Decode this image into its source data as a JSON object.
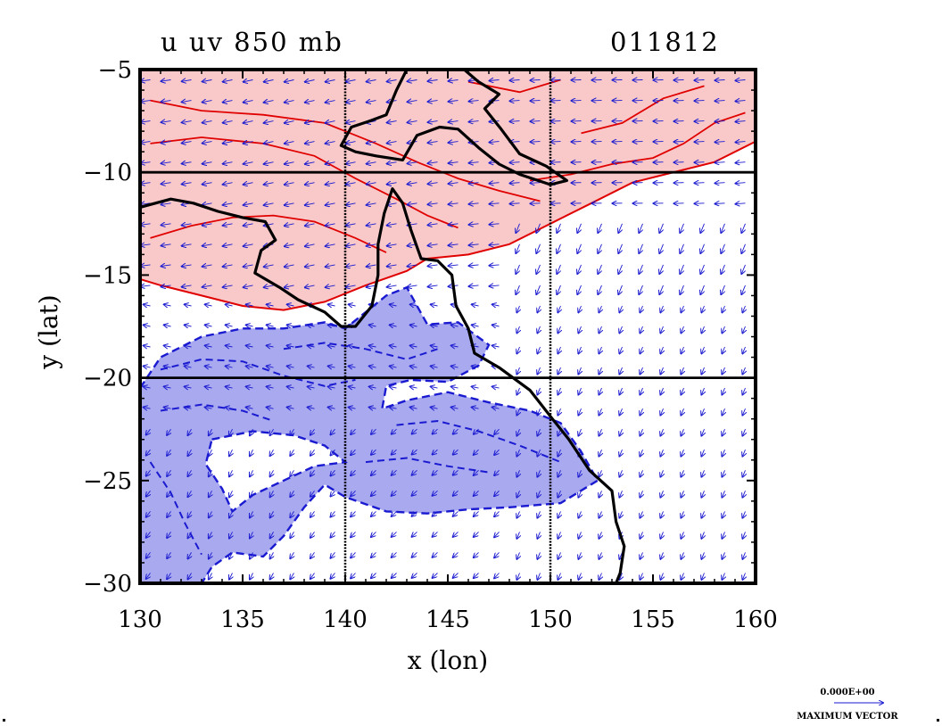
{
  "chart_data": {
    "type": "contour",
    "title": "u uv 850 mb",
    "stamp": "011812",
    "xlabel": "x (lon)",
    "ylabel": "y (lat)",
    "xlim": [
      130,
      160
    ],
    "ylim": [
      -30,
      -5
    ],
    "x_ticks": [
      130,
      135,
      140,
      145,
      150,
      155,
      160
    ],
    "y_ticks": [
      -5,
      -10,
      -15,
      -20,
      -25,
      -30
    ],
    "x_tick_labels": [
      "130",
      "135",
      "140",
      "145",
      "150",
      "155",
      "160"
    ],
    "y_tick_labels": [
      "−5",
      "−10",
      "−15",
      "−20",
      "−25",
      "−30"
    ],
    "grid_lon": [
      140,
      150
    ],
    "grid_lat": [
      -10,
      -20
    ],
    "grid": true,
    "vector_key": {
      "value_label": "0.000E+00",
      "label": "MAXIMUM VECTOR"
    },
    "colors": {
      "positive_fill": "#f9c9c9",
      "positive_line": "#e00000",
      "negative_fill": "#a9a9f0",
      "negative_line": "#1a1ad0",
      "vector": "#1a1ad0",
      "coast": "#000000"
    },
    "positive_region": [
      [
        130,
        -5
      ],
      [
        160,
        -5
      ],
      [
        160,
        -8.5
      ],
      [
        158,
        -9.5
      ],
      [
        154,
        -10.5
      ],
      [
        152,
        -11.5
      ],
      [
        150,
        -12.5
      ],
      [
        148,
        -13.5
      ],
      [
        146,
        -14
      ],
      [
        144,
        -14.2
      ],
      [
        143,
        -14.8
      ],
      [
        141,
        -15.5
      ],
      [
        139,
        -16.3
      ],
      [
        137,
        -16.7
      ],
      [
        135,
        -16.5
      ],
      [
        133,
        -16
      ],
      [
        131,
        -15.5
      ],
      [
        130,
        -15.2
      ]
    ],
    "negative_region": [
      [
        130,
        -20.5
      ],
      [
        131,
        -19
      ],
      [
        133,
        -18
      ],
      [
        135,
        -17.6
      ],
      [
        137,
        -17.6
      ],
      [
        139,
        -17.3
      ],
      [
        140,
        -17.6
      ],
      [
        141,
        -16.8
      ],
      [
        142,
        -16
      ],
      [
        143,
        -15.6
      ],
      [
        143.5,
        -16.5
      ],
      [
        144,
        -17.4
      ],
      [
        145.5,
        -17.3
      ],
      [
        147,
        -18.4
      ],
      [
        146.5,
        -19.4
      ],
      [
        145,
        -20.2
      ],
      [
        143.2,
        -20.1
      ],
      [
        142,
        -20.4
      ],
      [
        141.8,
        -21.5
      ],
      [
        143,
        -21.1
      ],
      [
        145,
        -20.7
      ],
      [
        147,
        -21.2
      ],
      [
        149,
        -21.6
      ],
      [
        150.5,
        -22.2
      ],
      [
        151.5,
        -23.6
      ],
      [
        152.3,
        -25
      ],
      [
        150.5,
        -26.1
      ],
      [
        148,
        -26.3
      ],
      [
        146,
        -26.4
      ],
      [
        144,
        -26.6
      ],
      [
        142,
        -26.5
      ],
      [
        140,
        -25.8
      ],
      [
        139,
        -25.2
      ],
      [
        138,
        -26.3
      ],
      [
        137,
        -27.7
      ],
      [
        136,
        -28.7
      ],
      [
        134.5,
        -28.5
      ],
      [
        133.5,
        -29.2
      ],
      [
        133,
        -30
      ],
      [
        130,
        -30
      ]
    ],
    "negative_hole": [
      [
        133.5,
        -23
      ],
      [
        135.5,
        -22.6
      ],
      [
        137.5,
        -22.8
      ],
      [
        139,
        -23.3
      ],
      [
        140,
        -24.1
      ],
      [
        138.5,
        -24.3
      ],
      [
        137,
        -25
      ],
      [
        135.5,
        -25.7
      ],
      [
        134.5,
        -26.5
      ],
      [
        134,
        -25.4
      ],
      [
        133.2,
        -24.2
      ]
    ],
    "coastline": [
      [
        130,
        -11.7
      ],
      [
        131.5,
        -11.3
      ],
      [
        132.6,
        -11.5
      ],
      [
        133.8,
        -11.9
      ],
      [
        135,
        -12.2
      ],
      [
        136.1,
        -12.4
      ],
      [
        136.6,
        -13.3
      ],
      [
        135.9,
        -13.8
      ],
      [
        135.6,
        -14.9
      ],
      [
        136.8,
        -15.6
      ],
      [
        137.7,
        -16.2
      ],
      [
        139,
        -16.8
      ],
      [
        139.8,
        -17.5
      ],
      [
        140.5,
        -17.5
      ],
      [
        141.3,
        -16.5
      ],
      [
        141.6,
        -15
      ],
      [
        141.6,
        -13.5
      ],
      [
        141.9,
        -12
      ],
      [
        142.3,
        -10.8
      ],
      [
        142.8,
        -11.5
      ],
      [
        143.2,
        -12.8
      ],
      [
        143.7,
        -14.2
      ],
      [
        144.5,
        -14.3
      ],
      [
        145.2,
        -15
      ],
      [
        145.4,
        -16.5
      ],
      [
        146,
        -17.6
      ],
      [
        146.3,
        -18.8
      ],
      [
        147.5,
        -19.5
      ],
      [
        149,
        -20.6
      ],
      [
        150.1,
        -22
      ],
      [
        150.9,
        -23
      ],
      [
        151.9,
        -24.5
      ],
      [
        153,
        -25.5
      ],
      [
        153.2,
        -27
      ],
      [
        153.6,
        -28.2
      ],
      [
        153.4,
        -29.5
      ],
      [
        153.2,
        -30
      ]
    ],
    "png_coast": [
      [
        143,
        -5
      ],
      [
        142.5,
        -6
      ],
      [
        142,
        -7.2
      ],
      [
        141.2,
        -7.5
      ],
      [
        140.3,
        -7.8
      ],
      [
        139.8,
        -8.7
      ],
      [
        140.5,
        -9
      ],
      [
        141.5,
        -9.2
      ],
      [
        142.8,
        -9.4
      ],
      [
        143.5,
        -8.2
      ],
      [
        144.6,
        -7.8
      ],
      [
        145.5,
        -7.9
      ],
      [
        146.5,
        -8.8
      ],
      [
        147.5,
        -9.6
      ],
      [
        148.5,
        -10.1
      ],
      [
        150,
        -10.6
      ],
      [
        150.8,
        -10.4
      ],
      [
        149.8,
        -9.7
      ],
      [
        148.5,
        -9.1
      ],
      [
        147.6,
        -7.9
      ],
      [
        146.8,
        -6.9
      ],
      [
        147.5,
        -6.2
      ],
      [
        146.5,
        -5.6
      ],
      [
        145.8,
        -5
      ]
    ],
    "positive_contours": [
      [
        [
          130.5,
          -6.5
        ],
        [
          133,
          -7
        ],
        [
          136,
          -7.2
        ],
        [
          139,
          -7.6
        ],
        [
          141.5,
          -8.6
        ],
        [
          143.5,
          -9.5
        ],
        [
          145.5,
          -10.3
        ],
        [
          147.5,
          -10.9
        ],
        [
          149.5,
          -11.4
        ]
      ],
      [
        [
          130.5,
          -8.6
        ],
        [
          133,
          -8.3
        ],
        [
          136,
          -8.6
        ],
        [
          138.5,
          -9.2
        ],
        [
          140.5,
          -10.3
        ],
        [
          142.5,
          -11.3
        ],
        [
          144,
          -12.1
        ],
        [
          145.5,
          -12.7
        ]
      ],
      [
        [
          130.5,
          -13.2
        ],
        [
          132.5,
          -12.6
        ],
        [
          134.5,
          -12.2
        ],
        [
          136.5,
          -12.1
        ],
        [
          138.5,
          -12.4
        ],
        [
          140.5,
          -13.2
        ],
        [
          142,
          -13.9
        ]
      ],
      [
        [
          149,
          -10.4
        ],
        [
          151,
          -10.1
        ],
        [
          153,
          -9.6
        ],
        [
          155,
          -9.3
        ],
        [
          156.5,
          -8.6
        ],
        [
          158,
          -7.6
        ],
        [
          159.5,
          -7.1
        ]
      ],
      [
        [
          151.5,
          -8.1
        ],
        [
          153.5,
          -7.6
        ],
        [
          155.5,
          -6.4
        ],
        [
          157.5,
          -5.8
        ]
      ],
      [
        [
          146,
          -5.6
        ],
        [
          148.5,
          -6.1
        ],
        [
          150.5,
          -5.5
        ]
      ]
    ],
    "negative_contours": [
      [
        [
          131,
          -19.6
        ],
        [
          133,
          -19.1
        ],
        [
          135,
          -19.2
        ],
        [
          137,
          -19.9
        ],
        [
          139,
          -20.4
        ],
        [
          140.5,
          -20.1
        ]
      ],
      [
        [
          131,
          -21.6
        ],
        [
          133,
          -21.3
        ],
        [
          135,
          -21.6
        ],
        [
          136.5,
          -22.1
        ]
      ],
      [
        [
          142.5,
          -22.3
        ],
        [
          144.5,
          -22.1
        ],
        [
          146.5,
          -22.6
        ],
        [
          148.5,
          -23.3
        ],
        [
          150.5,
          -24.1
        ]
      ],
      [
        [
          137,
          -18.6
        ],
        [
          139,
          -18.3
        ],
        [
          141,
          -18.6
        ],
        [
          143,
          -19.1
        ],
        [
          144.5,
          -18.6
        ]
      ],
      [
        [
          130.5,
          -24.1
        ],
        [
          131.5,
          -25.6
        ],
        [
          132.2,
          -27.1
        ],
        [
          133,
          -28.6
        ]
      ],
      [
        [
          141,
          -24.1
        ],
        [
          143,
          -23.9
        ],
        [
          145,
          -24.3
        ],
        [
          147,
          -24.6
        ]
      ]
    ]
  }
}
